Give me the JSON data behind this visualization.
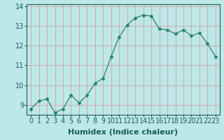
{
  "x": [
    0,
    1,
    2,
    3,
    4,
    5,
    6,
    7,
    8,
    9,
    10,
    11,
    12,
    13,
    14,
    15,
    16,
    17,
    18,
    19,
    20,
    21,
    22,
    23
  ],
  "y": [
    8.8,
    9.2,
    9.3,
    8.6,
    8.8,
    9.5,
    9.1,
    9.5,
    10.1,
    10.35,
    11.45,
    12.45,
    13.05,
    13.4,
    13.55,
    13.5,
    12.85,
    12.8,
    12.6,
    12.8,
    12.5,
    12.65,
    12.1,
    11.45
  ],
  "line_color": "#2e7d6e",
  "marker": "D",
  "marker_size": 2.5,
  "bg_color": "#bde8e8",
  "grid_color": "#d4a0a0",
  "text_color": "#1a5c5c",
  "xlabel": "Humidex (Indice chaleur)",
  "xlabel_fontsize": 8,
  "title": "",
  "ylim": [
    8.5,
    14.1
  ],
  "xlim": [
    -0.5,
    23.5
  ],
  "yticks": [
    9,
    10,
    11,
    12,
    13,
    14
  ],
  "xticks": [
    0,
    1,
    2,
    3,
    4,
    5,
    6,
    7,
    8,
    9,
    10,
    11,
    12,
    13,
    14,
    15,
    16,
    17,
    18,
    19,
    20,
    21,
    22,
    23
  ],
  "tick_fontsize": 7
}
